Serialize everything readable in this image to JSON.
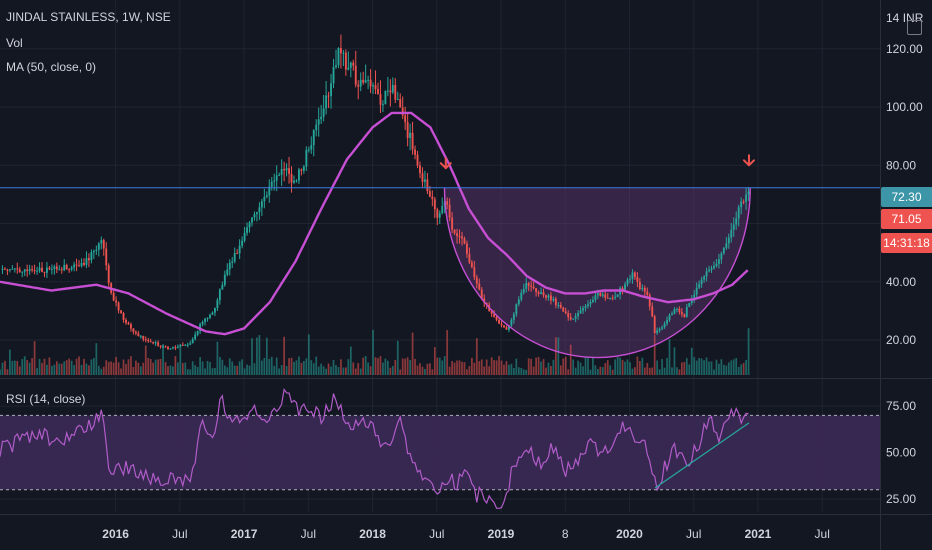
{
  "header": {
    "symbol": "JINDAL STAINLESS, 1W, NSE",
    "vol": "Vol",
    "ma": "MA (50, close, 0)",
    "rsi": "RSI (14, close)",
    "currency": "INR",
    "currency_prefix": "14"
  },
  "tags": {
    "level": "72.30",
    "price": "71.05",
    "countdown": "14:31:18"
  },
  "colors": {
    "background": "#131722",
    "grid": "#1f2430",
    "up": "#26a69a",
    "down": "#ef5350",
    "ma": "#c64fd3",
    "cup": "#c64fd3",
    "cup_fill": "#7b3f8c",
    "rsi_line": "#b15cc9",
    "rsi_band": "#3b2a55",
    "level_line": "#3d7ae0",
    "level_tag": "#3d96a8",
    "price_tag": "#ef5350",
    "arrow": "#ef5350",
    "trend": "#26a69a"
  },
  "chart_data": [
    {
      "type": "candlestick",
      "pane": "price",
      "title": "JINDAL STAINLESS, 1W, NSE",
      "y_ticks": [
        "120.00",
        "100.00",
        "80.00",
        "60.00",
        "40.00",
        "20.00"
      ],
      "y_tick_values": [
        120,
        100,
        80,
        60,
        40,
        20
      ],
      "ylim": [
        8,
        134
      ],
      "x_ticks": [
        "2016",
        "Jul",
        "2017",
        "Jul",
        "2018",
        "Jul",
        "2019",
        "8",
        "2020",
        "Jul",
        "2021",
        "Jul"
      ],
      "x_tick_positions": [
        2016.0,
        2016.5,
        2017.0,
        2017.5,
        2018.0,
        2018.5,
        2019.0,
        2019.5,
        2020.0,
        2020.5,
        2021.0,
        2021.5
      ],
      "xlim": [
        2015.1,
        2021.95
      ],
      "price_keypoints": [
        [
          2015.1,
          44
        ],
        [
          2015.45,
          44
        ],
        [
          2015.75,
          46
        ],
        [
          2015.9,
          55
        ],
        [
          2015.96,
          36
        ],
        [
          2016.05,
          28
        ],
        [
          2016.15,
          22
        ],
        [
          2016.4,
          17
        ],
        [
          2016.58,
          19
        ],
        [
          2016.66,
          25
        ],
        [
          2016.76,
          30
        ],
        [
          2016.86,
          43
        ],
        [
          2016.95,
          51
        ],
        [
          2017.05,
          62
        ],
        [
          2017.2,
          72
        ],
        [
          2017.3,
          80
        ],
        [
          2017.4,
          74
        ],
        [
          2017.5,
          85
        ],
        [
          2017.6,
          97
        ],
        [
          2017.68,
          110
        ],
        [
          2017.73,
          118
        ],
        [
          2017.82,
          114
        ],
        [
          2017.9,
          108
        ],
        [
          2018.0,
          110
        ],
        [
          2018.05,
          102
        ],
        [
          2018.15,
          106
        ],
        [
          2018.25,
          94
        ],
        [
          2018.32,
          86
        ],
        [
          2018.4,
          74
        ],
        [
          2018.46,
          70
        ],
        [
          2018.5,
          62
        ],
        [
          2018.58,
          68
        ],
        [
          2018.63,
          56
        ],
        [
          2018.7,
          54
        ],
        [
          2018.78,
          43
        ],
        [
          2018.86,
          34
        ],
        [
          2018.95,
          27
        ],
        [
          2019.05,
          23
        ],
        [
          2019.12,
          32
        ],
        [
          2019.2,
          40
        ],
        [
          2019.3,
          36
        ],
        [
          2019.4,
          34
        ],
        [
          2019.55,
          27
        ],
        [
          2019.65,
          32
        ],
        [
          2019.75,
          36
        ],
        [
          2019.85,
          34
        ],
        [
          2019.95,
          38
        ],
        [
          2020.02,
          43
        ],
        [
          2020.07,
          39
        ],
        [
          2020.15,
          34
        ],
        [
          2020.2,
          22
        ],
        [
          2020.28,
          26
        ],
        [
          2020.35,
          31
        ],
        [
          2020.42,
          28
        ],
        [
          2020.5,
          36
        ],
        [
          2020.6,
          43
        ],
        [
          2020.68,
          47
        ],
        [
          2020.78,
          56
        ],
        [
          2020.85,
          64
        ],
        [
          2020.92,
          71.05
        ]
      ],
      "ma": {
        "label": "MA (50, close, 0)",
        "keypoints": [
          [
            2015.1,
            40
          ],
          [
            2015.5,
            37
          ],
          [
            2015.85,
            39
          ],
          [
            2016.1,
            36
          ],
          [
            2016.4,
            29
          ],
          [
            2016.7,
            23
          ],
          [
            2016.85,
            22
          ],
          [
            2017.0,
            24
          ],
          [
            2017.2,
            33
          ],
          [
            2017.4,
            47
          ],
          [
            2017.6,
            65
          ],
          [
            2017.8,
            82
          ],
          [
            2018.0,
            93
          ],
          [
            2018.15,
            98
          ],
          [
            2018.3,
            98
          ],
          [
            2018.45,
            93
          ],
          [
            2018.6,
            80
          ],
          [
            2018.75,
            65
          ],
          [
            2018.9,
            55
          ],
          [
            2019.05,
            49
          ],
          [
            2019.2,
            42
          ],
          [
            2019.35,
            38
          ],
          [
            2019.5,
            36
          ],
          [
            2019.65,
            36
          ],
          [
            2019.8,
            37
          ],
          [
            2019.95,
            37
          ],
          [
            2020.1,
            35
          ],
          [
            2020.3,
            33
          ],
          [
            2020.5,
            34
          ],
          [
            2020.65,
            36
          ],
          [
            2020.8,
            39
          ],
          [
            2020.92,
            44
          ]
        ]
      },
      "resistance_level": 72.3,
      "cup": {
        "rim_left": [
          2018.56,
          72.3
        ],
        "rim_right": [
          2020.94,
          72.3
        ],
        "bottom": [
          2019.75,
          14
        ]
      },
      "arrows": [
        [
          2018.57,
          79
        ],
        [
          2020.93,
          80
        ]
      ]
    },
    {
      "type": "bar",
      "pane": "volume",
      "label": "Vol",
      "note": "weekly volume histogram along the bottom of the price pane"
    },
    {
      "type": "line",
      "pane": "rsi",
      "label": "RSI (14, close)",
      "y_ticks": [
        "75.00",
        "50.00",
        "25.00"
      ],
      "y_tick_values": [
        75,
        50,
        25
      ],
      "ylim": [
        18,
        88
      ],
      "band": [
        30,
        70
      ],
      "keypoints": [
        [
          2015.1,
          52
        ],
        [
          2015.4,
          60
        ],
        [
          2015.6,
          56
        ],
        [
          2015.8,
          65
        ],
        [
          2015.9,
          70
        ],
        [
          2015.95,
          38
        ],
        [
          2016.1,
          42
        ],
        [
          2016.3,
          36
        ],
        [
          2016.5,
          34
        ],
        [
          2016.6,
          40
        ],
        [
          2016.66,
          65
        ],
        [
          2016.75,
          56
        ],
        [
          2016.82,
          82
        ],
        [
          2016.9,
          64
        ],
        [
          2017.05,
          72
        ],
        [
          2017.2,
          68
        ],
        [
          2017.32,
          84
        ],
        [
          2017.45,
          72
        ],
        [
          2017.6,
          70
        ],
        [
          2017.72,
          80
        ],
        [
          2017.8,
          62
        ],
        [
          2018.0,
          66
        ],
        [
          2018.1,
          52
        ],
        [
          2018.2,
          68
        ],
        [
          2018.32,
          44
        ],
        [
          2018.45,
          35
        ],
        [
          2018.5,
          30
        ],
        [
          2018.57,
          38
        ],
        [
          2018.65,
          32
        ],
        [
          2018.72,
          38
        ],
        [
          2018.8,
          28
        ],
        [
          2018.9,
          25
        ],
        [
          2018.96,
          22
        ],
        [
          2019.02,
          21
        ],
        [
          2019.1,
          45
        ],
        [
          2019.2,
          52
        ],
        [
          2019.3,
          44
        ],
        [
          2019.4,
          55
        ],
        [
          2019.5,
          40
        ],
        [
          2019.6,
          44
        ],
        [
          2019.7,
          54
        ],
        [
          2019.8,
          48
        ],
        [
          2019.9,
          60
        ],
        [
          2020.0,
          66
        ],
        [
          2020.06,
          52
        ],
        [
          2020.12,
          58
        ],
        [
          2020.2,
          32
        ],
        [
          2020.28,
          42
        ],
        [
          2020.35,
          52
        ],
        [
          2020.45,
          42
        ],
        [
          2020.55,
          56
        ],
        [
          2020.62,
          68
        ],
        [
          2020.7,
          58
        ],
        [
          2020.78,
          72
        ],
        [
          2020.86,
          68
        ],
        [
          2020.92,
          70
        ]
      ],
      "trendline": [
        [
          2020.2,
          31
        ],
        [
          2020.93,
          66
        ]
      ]
    }
  ]
}
